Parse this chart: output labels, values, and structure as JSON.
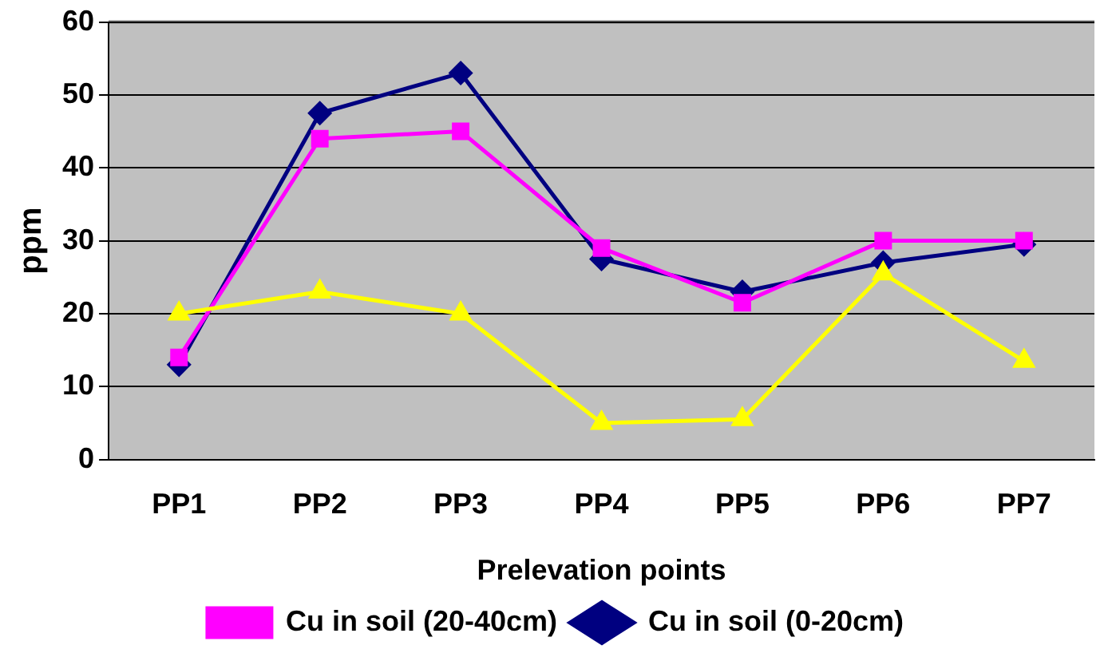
{
  "chart_data": {
    "type": "line",
    "xlabel": "Prelevation points",
    "ylabel": "ppm",
    "categories": [
      "PP1",
      "PP2",
      "PP3",
      "PP4",
      "PP5",
      "PP6",
      "PP7"
    ],
    "series": [
      {
        "name": "Cu in soil (0-20cm)",
        "color": "#000080",
        "marker": "diamond",
        "values": [
          13,
          47.5,
          53,
          27.5,
          23,
          27,
          29.5
        ]
      },
      {
        "name": "Cu in soil (20-40cm)",
        "color": "#ff00ff",
        "marker": "square",
        "values": [
          14,
          44,
          45,
          29,
          21.5,
          30,
          30
        ]
      },
      {
        "color": "#ffff00",
        "marker": "triangle",
        "values": [
          20,
          23,
          20,
          5,
          5.5,
          25.5,
          13.5
        ]
      }
    ],
    "ylim": [
      0,
      60
    ],
    "yticks": [
      0,
      10,
      20,
      30,
      40,
      50,
      60
    ],
    "grid": "y",
    "legend": "bottom",
    "line_style": "solid"
  }
}
